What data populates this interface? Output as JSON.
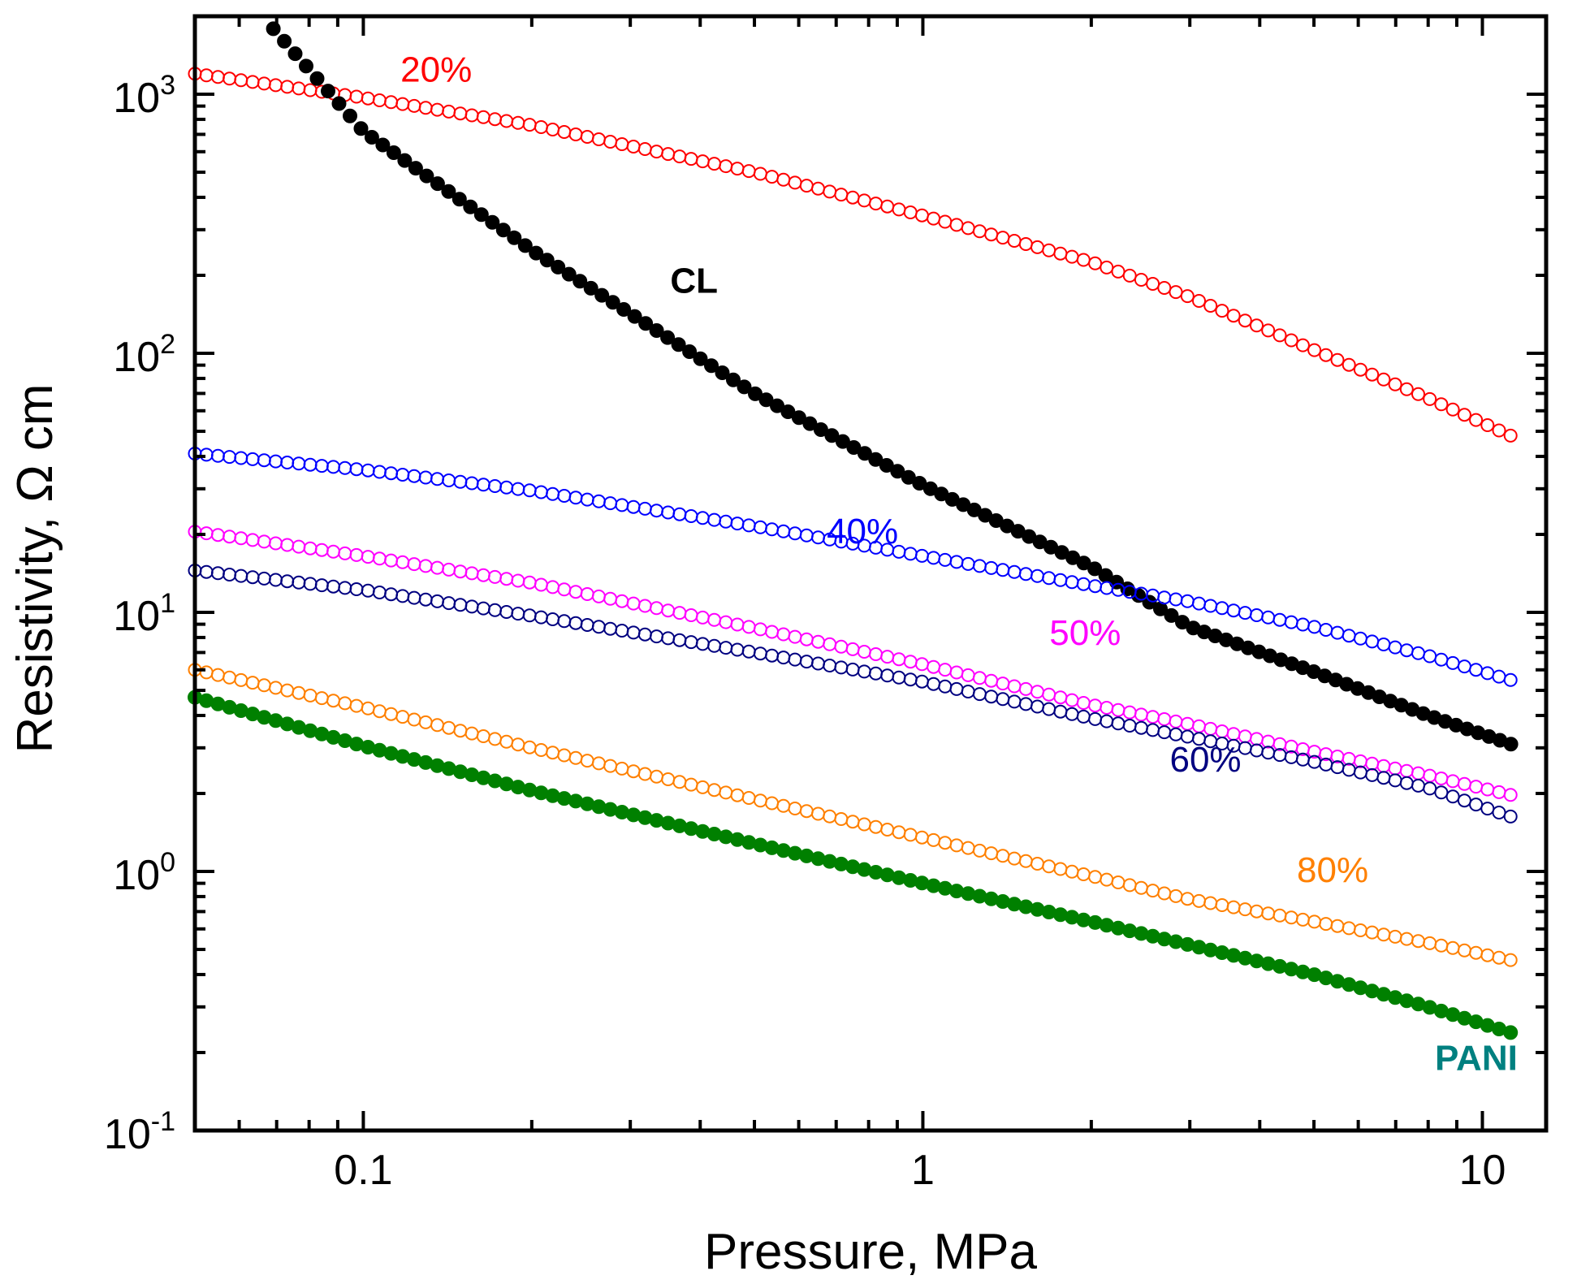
{
  "chart_data": {
    "type": "scatter",
    "title": "",
    "xlabel": "Pressure, MPa",
    "ylabel": "Resistivity, Ω cm",
    "xscale": "log",
    "yscale": "log",
    "xlim": [
      0.05,
      13
    ],
    "ylim": [
      0.1,
      2000
    ],
    "grid": false,
    "legend": "none (inline labels)",
    "x_ticks": [
      {
        "value": 0.1,
        "label": "0.1"
      },
      {
        "value": 1,
        "label": "1"
      },
      {
        "value": 10,
        "label": "10"
      }
    ],
    "y_ticks": [
      {
        "value": 0.1,
        "base": "10",
        "exp": "-1"
      },
      {
        "value": 1,
        "base": "10",
        "exp": "0"
      },
      {
        "value": 10,
        "base": "10",
        "exp": "1"
      },
      {
        "value": 100,
        "base": "10",
        "exp": "2"
      },
      {
        "value": 1000,
        "base": "10",
        "exp": "3"
      }
    ],
    "series": [
      {
        "name": "20%",
        "color": "#ff0000",
        "filled": false,
        "points": [
          [
            0.05,
            1200
          ],
          [
            0.1,
            970
          ],
          [
            0.2,
            760
          ],
          [
            0.5,
            500
          ],
          [
            1,
            340
          ],
          [
            2,
            225
          ],
          [
            3,
            165
          ],
          [
            5,
            103
          ],
          [
            8,
            67
          ],
          [
            11.5,
            47
          ]
        ],
        "label_at": [
          0.135,
          1120
        ],
        "label_bold": false
      },
      {
        "name": "CL",
        "color": "#000000",
        "filled": true,
        "points": [
          [
            0.066,
            2000
          ],
          [
            0.1,
            720
          ],
          [
            0.2,
            250
          ],
          [
            0.5,
            70
          ],
          [
            1,
            31
          ],
          [
            2,
            15
          ],
          [
            3,
            8.8
          ],
          [
            5,
            5.9
          ],
          [
            8,
            4.0
          ],
          [
            11.5,
            3.05
          ]
        ],
        "label_at": [
          0.39,
          171
        ],
        "label_bold": true
      },
      {
        "name": "40%",
        "color": "#0000ff",
        "filled": false,
        "points": [
          [
            0.05,
            41
          ],
          [
            0.1,
            35.5
          ],
          [
            0.2,
            29.5
          ],
          [
            0.5,
            21.5
          ],
          [
            1,
            16.5
          ],
          [
            2,
            12.7
          ],
          [
            3,
            11.0
          ],
          [
            5,
            8.8
          ],
          [
            8,
            6.8
          ],
          [
            11.5,
            5.4
          ]
        ],
        "label_at": [
          0.78,
          18.5
        ],
        "label_bold": false
      },
      {
        "name": "50%",
        "color": "#ff00ff",
        "filled": false,
        "points": [
          [
            0.05,
            20.5
          ],
          [
            0.1,
            16.5
          ],
          [
            0.2,
            13.0
          ],
          [
            0.5,
            8.7
          ],
          [
            1,
            6.3
          ],
          [
            2,
            4.4
          ],
          [
            3,
            3.7
          ],
          [
            5,
            2.9
          ],
          [
            8,
            2.35
          ],
          [
            11.5,
            1.95
          ]
        ],
        "label_at": [
          1.95,
          7.5
        ],
        "label_bold": false
      },
      {
        "name": "60%",
        "color": "#000080",
        "filled": false,
        "points": [
          [
            0.05,
            14.5
          ],
          [
            0.1,
            12.2
          ],
          [
            0.2,
            9.7
          ],
          [
            0.5,
            7.0
          ],
          [
            1,
            5.4
          ],
          [
            2,
            3.9
          ],
          [
            3,
            3.3
          ],
          [
            5,
            2.65
          ],
          [
            8,
            2.1
          ],
          [
            11.5,
            1.6
          ]
        ],
        "label_at": [
          3.2,
          2.43
        ],
        "label_bold": false
      },
      {
        "name": "80%",
        "color": "#ff8000",
        "filled": false,
        "points": [
          [
            0.05,
            6.0
          ],
          [
            0.1,
            4.3
          ],
          [
            0.2,
            3.0
          ],
          [
            0.5,
            1.9
          ],
          [
            1,
            1.35
          ],
          [
            2,
            0.96
          ],
          [
            3,
            0.78
          ],
          [
            5,
            0.64
          ],
          [
            8,
            0.53
          ],
          [
            11.5,
            0.45
          ]
        ],
        "label_at": [
          5.4,
          0.91
        ],
        "label_bold": false
      },
      {
        "name": "PANI",
        "color": "#008000",
        "label_color": "#008080",
        "filled": true,
        "points": [
          [
            0.05,
            4.7
          ],
          [
            0.1,
            3.05
          ],
          [
            0.2,
            2.05
          ],
          [
            0.5,
            1.28
          ],
          [
            1,
            0.9
          ],
          [
            2,
            0.64
          ],
          [
            3,
            0.52
          ],
          [
            5,
            0.4
          ],
          [
            8,
            0.3
          ],
          [
            11.5,
            0.235
          ]
        ],
        "label_at": [
          9.75,
          0.171
        ],
        "label_bold": true
      }
    ]
  }
}
